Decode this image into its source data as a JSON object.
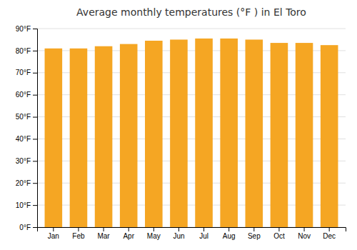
{
  "chart_data": {
    "type": "bar",
    "title": "Average monthly temperatures (°F ) in El Toro",
    "categories": [
      "Jan",
      "Feb",
      "Mar",
      "Apr",
      "May",
      "Jun",
      "Jul",
      "Aug",
      "Sep",
      "Oct",
      "Nov",
      "Dec"
    ],
    "values": [
      81,
      81,
      82,
      83,
      84.5,
      85,
      85.5,
      85.5,
      85,
      83.5,
      83.5,
      82.5
    ],
    "color": "#F5A623",
    "ylim": [
      0,
      90
    ],
    "yticks": [
      {
        "value": 0,
        "label": "0°F"
      },
      {
        "value": 10,
        "label": "10°F"
      },
      {
        "value": 20,
        "label": "20°F"
      },
      {
        "value": 30,
        "label": "30°F"
      },
      {
        "value": 40,
        "label": "40°F"
      },
      {
        "value": 50,
        "label": "50°F"
      },
      {
        "value": 60,
        "label": "60°F"
      },
      {
        "value": 70,
        "label": "70°F"
      },
      {
        "value": 80,
        "label": "80°F"
      },
      {
        "value": 90,
        "label": "90°F"
      }
    ],
    "grid": true
  }
}
